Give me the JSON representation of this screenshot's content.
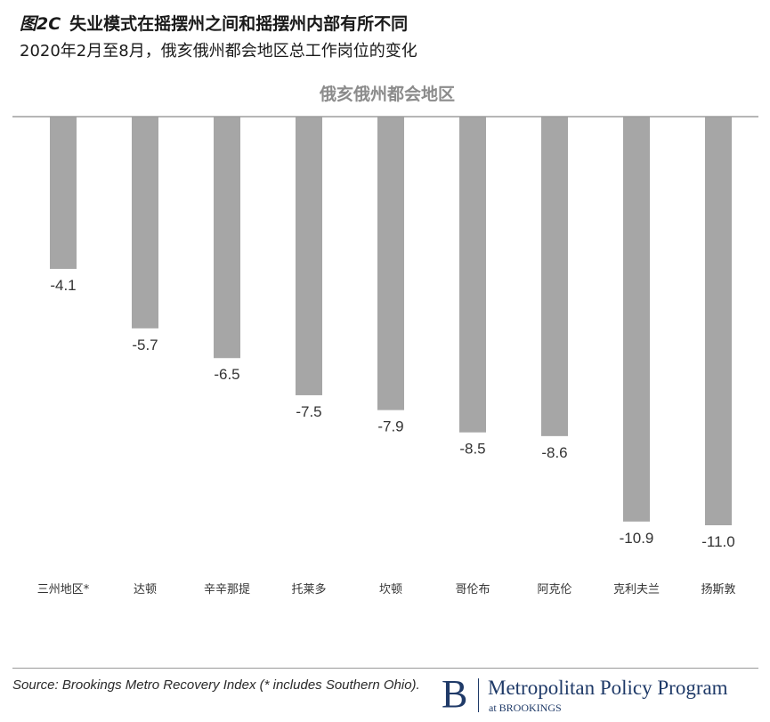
{
  "figure": {
    "label": "图2C",
    "title": "失业模式在摇摆州之间和摇摆州内部有所不同",
    "subtitle": "2020年2月至8月，俄亥俄州都会地区总工作岗位的变化"
  },
  "chart_data": {
    "type": "bar",
    "title": "俄亥俄州都会地区",
    "categories": [
      "三州地区*",
      "达顿",
      "辛辛那提",
      "托莱多",
      "坎顿",
      "哥伦布",
      "阿克伦",
      "克利夫兰",
      "扬斯敦"
    ],
    "values": [
      -4.1,
      -5.7,
      -6.5,
      -7.5,
      -7.9,
      -8.5,
      -8.6,
      -10.9,
      -11.0
    ],
    "value_labels": [
      "-4.1",
      "-5.7",
      "-6.5",
      "-7.5",
      "-7.9",
      "-8.5",
      "-8.6",
      "-10.9",
      "-11.0"
    ],
    "xlabel": "",
    "ylabel": "",
    "ylim": [
      -11.0,
      0
    ],
    "grid": false,
    "legend": "none",
    "bar_color": "#a6a6a6",
    "baseline_color": "#9e9e9e",
    "title_color": "#8c8c8c",
    "label_color": "#333333"
  },
  "footer": {
    "source": "Source: Brookings Metro Recovery Index (* includes Southern Ohio).",
    "logo_mark": "B",
    "logo_name": "Metropolitan Policy Program",
    "logo_sub": "at BROOKINGS",
    "brand_color": "#1f3a68"
  }
}
